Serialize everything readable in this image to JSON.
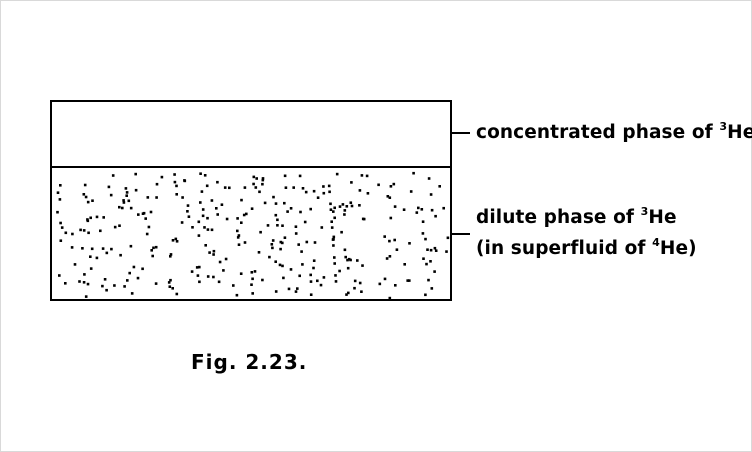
{
  "labels": {
    "concentrated": {
      "text": "concentrated phase of ",
      "sup": "3",
      "tail": "He"
    },
    "dilute_line1": {
      "text": "dilute phase of ",
      "sup": "3",
      "tail": "He"
    },
    "dilute_line2": {
      "text": "(in superfluid of ",
      "sup": "4",
      "tail": "He)"
    }
  },
  "caption": "Fig. 2.23."
}
